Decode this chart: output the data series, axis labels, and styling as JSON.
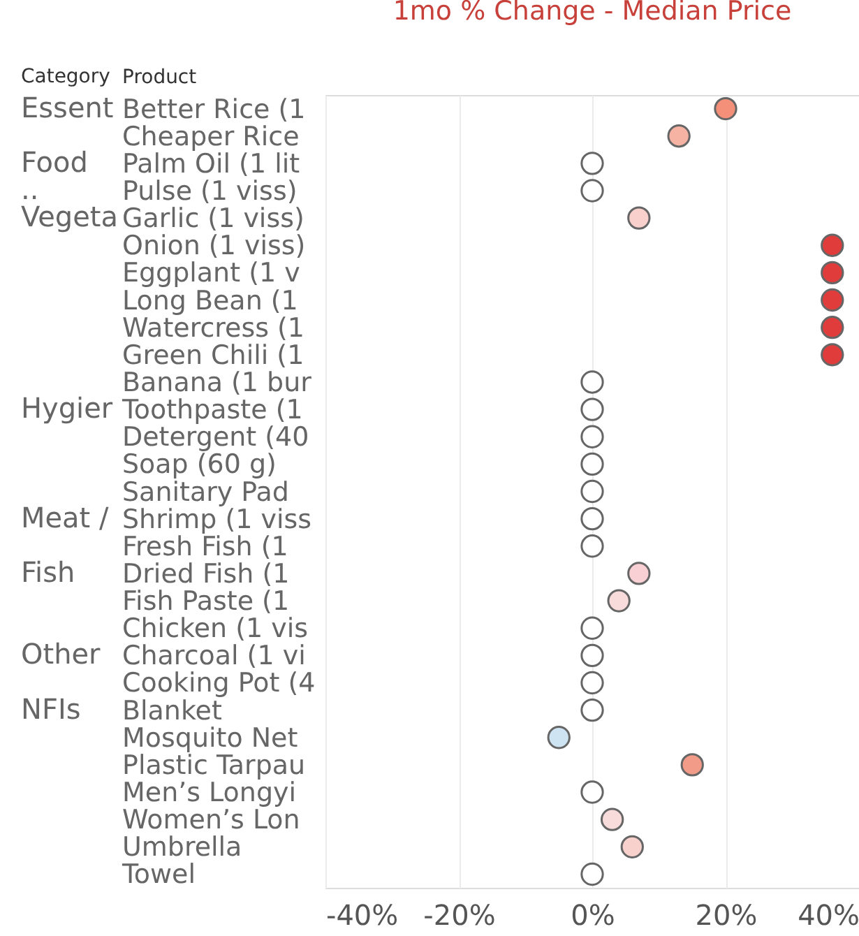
{
  "chart_data": {
    "type": "scatter",
    "title": "1mo % Change - Median Price",
    "ylabel": "Product",
    "categories": [
      "Better Rice (1",
      "Cheaper Rice",
      "Palm Oil (1 lit",
      "Pulse (1 viss)",
      "Garlic (1 viss)",
      "Onion (1 viss)",
      "Eggplant (1 v",
      "Long Bean (1",
      "Watercress (1",
      "Green Chili (1",
      "Banana (1 bur",
      "Toothpaste (1",
      "Detergent (40",
      "Soap (60 g)",
      "Sanitary Pad",
      "Shrimp (1 viss",
      "Fresh Fish (1",
      "Dried Fish (1",
      "Fish Paste (1",
      "Chicken (1 vis",
      "Charcoal (1 vi",
      "Cooking Pot (4",
      "Blanket",
      "Mosquito Net",
      "Plastic Tarpau",
      "Men’s Longyi",
      "Women’s Lon",
      "Umbrella",
      "Towel"
    ],
    "series": [
      {
        "values": [
          20,
          13,
          0,
          0,
          7,
          36,
          36,
          36,
          36,
          36,
          0,
          0,
          0,
          0,
          0,
          0,
          0,
          7,
          4,
          0,
          0,
          0,
          0,
          -5,
          15,
          0,
          3,
          6,
          0
        ],
        "colors": [
          "#f4907a",
          "#f6b3a4",
          "#ffffff",
          "#ffffff",
          "#f9d0cb",
          "#e03c3c",
          "#e03c3c",
          "#e03c3c",
          "#e03c3c",
          "#e03c3c",
          "#ffffff",
          "#ffffff",
          "#ffffff",
          "#ffffff",
          "#ffffff",
          "#ffffff",
          "#ffffff",
          "#f9d0d3",
          "#f8dcdb",
          "#ffffff",
          "#ffffff",
          "#ffffff",
          "#ffffff",
          "#cfe4f2",
          "#f29b88",
          "#ffffff",
          "#f7dcdb",
          "#f8d1cc",
          "#ffffff"
        ]
      }
    ],
    "orientation": "horizontal",
    "xlim": [
      -40,
      40
    ],
    "xticks": [
      {
        "value": -40,
        "label": "-40%"
      },
      {
        "value": -20,
        "label": "-20%"
      },
      {
        "value": 0,
        "label": "0%"
      },
      {
        "value": 20,
        "label": "20%"
      },
      {
        "value": 40,
        "label": "40%"
      }
    ],
    "annotations": [
      "Category",
      "Essent",
      "Food",
      "..",
      "Vegeta",
      "Hygier",
      "Meat /",
      "Fish",
      "Other",
      "NFIs"
    ],
    "grid": "x",
    "marker": "circle",
    "legend": false
  }
}
